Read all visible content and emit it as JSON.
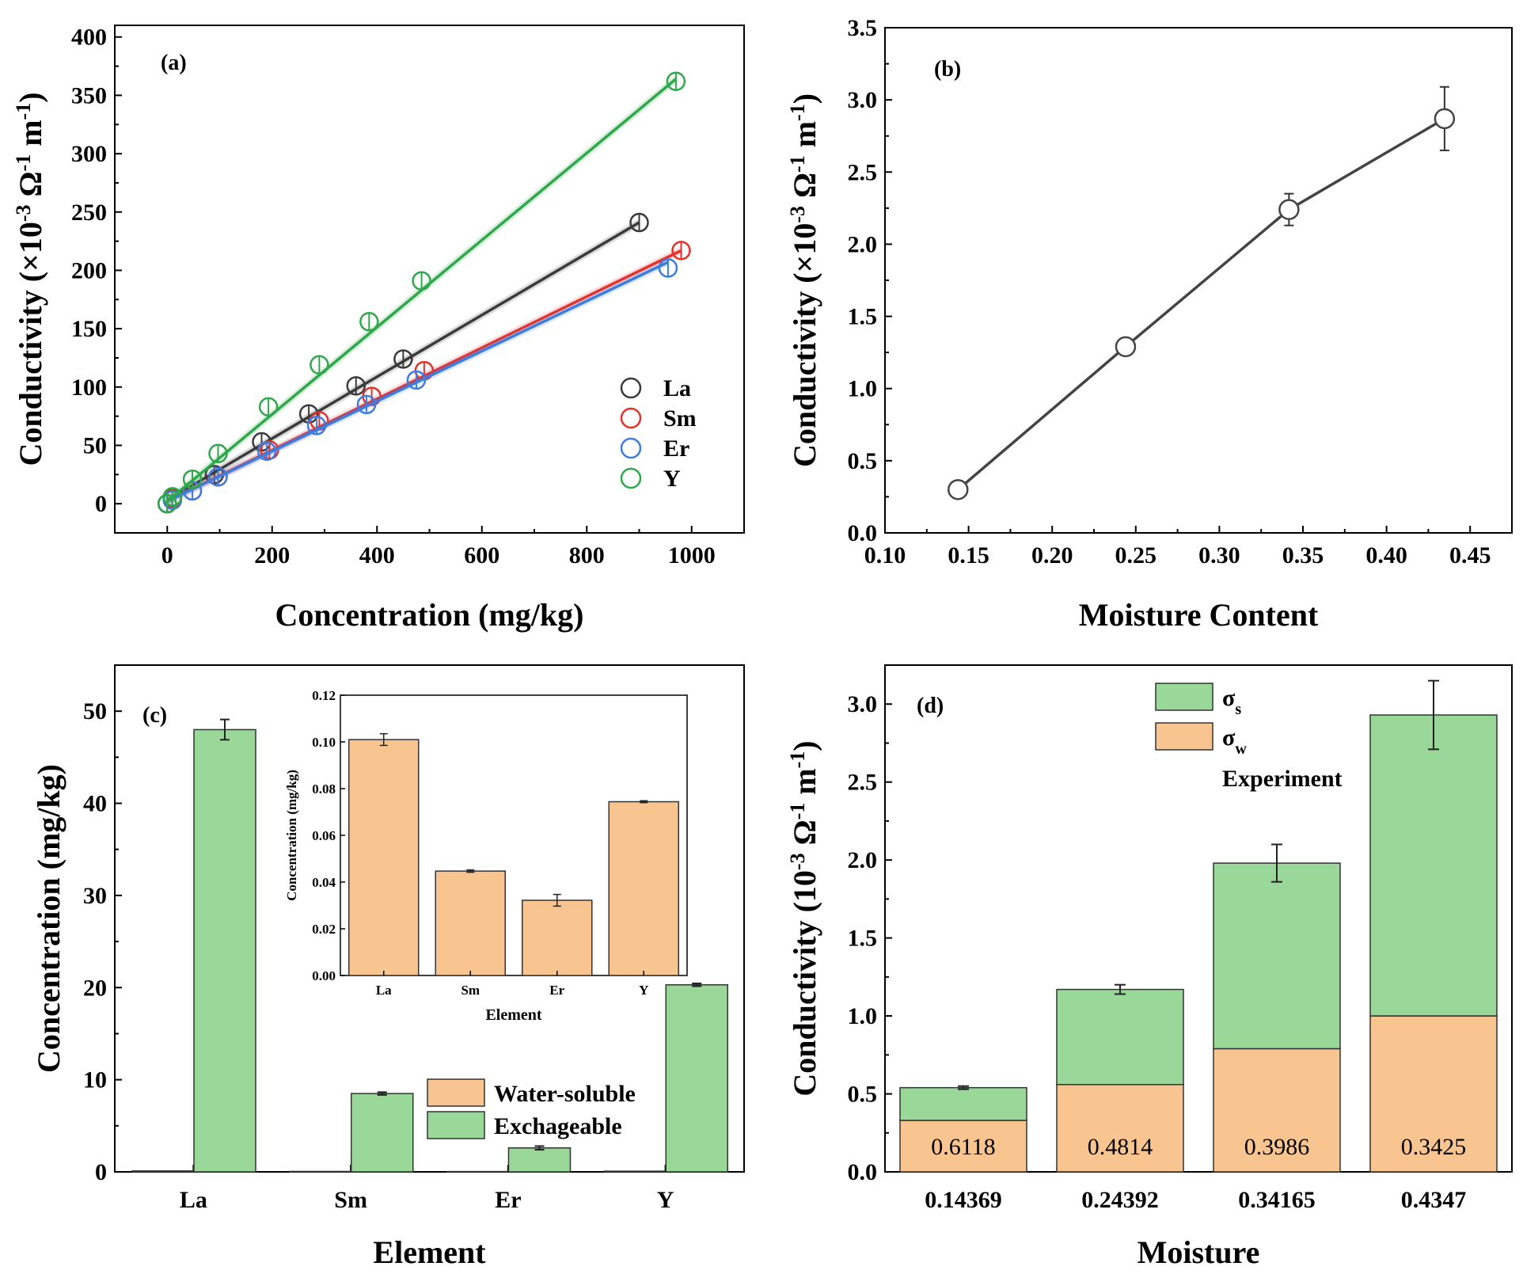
{
  "colors": {
    "La": "#3a3a3a",
    "Sm": "#e8302a",
    "Er": "#3b7de0",
    "Y": "#2ea84a",
    "green_bar": "#9ad89a",
    "orange_bar": "#f8c590",
    "line_b": "#444444"
  },
  "chart_data": [
    {
      "id": "a",
      "type": "scatter",
      "panel_label": "(a)",
      "xlabel": "Concentration (mg/kg)",
      "ylabel": "Conductivity (×10-3 Ω-1 m-1)",
      "ylabel_parts": {
        "main": "Conductivity (×10",
        "exp1": "-3",
        "mid": " Ω",
        "exp2": "-1",
        "end": " m",
        "exp3": "-1",
        "close": ")"
      },
      "xlim": [
        -100,
        1100
      ],
      "ylim": [
        -25,
        410
      ],
      "xticks": [
        "0",
        "200",
        "400",
        "600",
        "800",
        "1000"
      ],
      "yticks": [
        "0",
        "50",
        "100",
        "150",
        "200",
        "250",
        "300",
        "350",
        "400"
      ],
      "legend_position": "right",
      "series": [
        {
          "name": "La",
          "x": [
            0,
            10,
            90,
            180,
            270,
            360,
            450,
            900
          ],
          "y": [
            0,
            5,
            25,
            53,
            77,
            101,
            124,
            241
          ],
          "fit": [
            [
              0,
              3
            ],
            [
              900,
              241
            ]
          ]
        },
        {
          "name": "Sm",
          "x": [
            0,
            10,
            48,
            97,
            195,
            290,
            390,
            490,
            980
          ],
          "y": [
            0,
            4,
            11,
            23,
            46,
            71,
            92,
            114,
            217
          ],
          "fit": [
            [
              0,
              2
            ],
            [
              980,
              217
            ]
          ]
        },
        {
          "name": "Er",
          "x": [
            0,
            10,
            48,
            97,
            190,
            285,
            380,
            475,
            955
          ],
          "y": [
            0,
            3,
            11,
            23,
            45,
            67,
            85,
            106,
            202
          ],
          "fit": [
            [
              0,
              2
            ],
            [
              955,
              207
            ]
          ]
        },
        {
          "name": "Y",
          "x": [
            0,
            10,
            48,
            97,
            193,
            290,
            385,
            485,
            970
          ],
          "y": [
            0,
            6,
            21,
            43,
            83,
            119,
            156,
            191,
            362
          ],
          "fit": [
            [
              0,
              2
            ],
            [
              970,
              364
            ]
          ]
        }
      ]
    },
    {
      "id": "b",
      "type": "line",
      "panel_label": "(b)",
      "xlabel": "Moisture Content",
      "ylabel_parts": {
        "main": "Conductivity (×10",
        "exp1": "-3",
        "mid": " Ω",
        "exp2": "-1",
        "end": " m",
        "exp3": "-1",
        "close": ")"
      },
      "xlim": [
        0.1,
        0.475
      ],
      "ylim": [
        0,
        3.5
      ],
      "xticks": [
        "0.10",
        "0.15",
        "0.20",
        "0.25",
        "0.30",
        "0.35",
        "0.40",
        "0.45"
      ],
      "yticks": [
        "0.0",
        "0.5",
        "1.0",
        "1.5",
        "2.0",
        "2.5",
        "3.0",
        "3.5"
      ],
      "x": [
        0.14369,
        0.24392,
        0.34165,
        0.4347
      ],
      "y": [
        0.3,
        1.29,
        2.24,
        2.87
      ],
      "err": [
        0.03,
        0.05,
        0.11,
        0.22
      ]
    },
    {
      "id": "c",
      "type": "bar",
      "panel_label": "(c)",
      "xlabel": "Element",
      "ylabel": "Concentration (mg/kg)",
      "ylim": [
        0,
        55
      ],
      "yticks": [
        "0",
        "10",
        "20",
        "30",
        "40",
        "50"
      ],
      "categories": [
        "La",
        "Sm",
        "Er",
        "Y"
      ],
      "series": [
        {
          "name": "Water-soluble",
          "values": [
            0.101,
            0.0447,
            0.0322,
            0.0744
          ],
          "err": [
            0,
            0,
            0,
            0
          ]
        },
        {
          "name": "Exchageable",
          "values": [
            48.0,
            8.5,
            2.6,
            20.3
          ],
          "err": [
            1.1,
            0.15,
            0.2,
            0.15
          ]
        }
      ],
      "inset": {
        "type": "bar",
        "xlabel": "Element",
        "ylabel": "Concentration (mg/kg)",
        "ylim": [
          0,
          0.12
        ],
        "yticks": [
          "0.00",
          "0.02",
          "0.04",
          "0.06",
          "0.08",
          "0.10",
          "0.12"
        ],
        "categories": [
          "La",
          "Sm",
          "Er",
          "Y"
        ],
        "values": [
          0.101,
          0.0447,
          0.0322,
          0.0744
        ],
        "err": [
          0.0025,
          0.0005,
          0.0025,
          0.0004
        ]
      }
    },
    {
      "id": "d",
      "type": "bar",
      "stacked": true,
      "panel_label": "(d)",
      "xlabel": "Moisture",
      "ylabel_parts": {
        "main": "Conductivity (10",
        "exp1": "-3",
        "mid": " Ω",
        "exp2": "-1",
        "end": " m",
        "exp3": "-1",
        "close": ")"
      },
      "ylim": [
        0,
        3.25
      ],
      "yticks": [
        "0.0",
        "0.5",
        "1.0",
        "1.5",
        "2.0",
        "2.5",
        "3.0"
      ],
      "categories": [
        "0.14369",
        "0.24392",
        "0.34165",
        "0.4347"
      ],
      "series": [
        {
          "name": "σw",
          "symbol": "σ",
          "sub": "w",
          "values": [
            0.33,
            0.56,
            0.79,
            1.0
          ]
        },
        {
          "name": "σs",
          "symbol": "σ",
          "sub": "s",
          "values": [
            0.21,
            0.61,
            1.19,
            1.93
          ]
        }
      ],
      "experiment_label": "Experiment",
      "experiment_err": [
        0.01,
        0.03,
        0.12,
        0.22
      ],
      "bar_labels": [
        "0.6118",
        "0.4814",
        "0.3986",
        "0.3425"
      ]
    }
  ]
}
